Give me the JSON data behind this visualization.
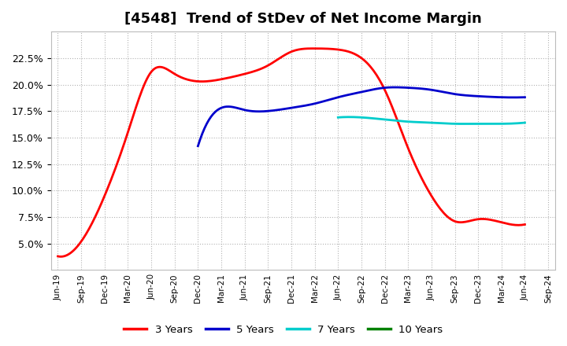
{
  "title": "[4548]  Trend of StDev of Net Income Margin",
  "title_fontsize": 13,
  "background_color": "#ffffff",
  "plot_bg_color": "#ffffff",
  "grid_color": "#aaaaaa",
  "x_labels": [
    "Jun-19",
    "Sep-19",
    "Dec-19",
    "Mar-20",
    "Jun-20",
    "Sep-20",
    "Dec-20",
    "Mar-21",
    "Jun-21",
    "Sep-21",
    "Dec-21",
    "Mar-22",
    "Jun-22",
    "Sep-22",
    "Dec-22",
    "Mar-23",
    "Jun-23",
    "Sep-23",
    "Dec-23",
    "Mar-24",
    "Jun-24",
    "Sep-24"
  ],
  "series": {
    "3 Years": {
      "color": "#ff0000",
      "linewidth": 2.0,
      "values": [
        3.8,
        5.2,
        9.5,
        15.5,
        21.2,
        21.0,
        20.3,
        20.5,
        21.0,
        21.8,
        23.1,
        23.4,
        23.3,
        22.5,
        19.5,
        14.0,
        9.5,
        7.1,
        7.3,
        7.0,
        6.8,
        null
      ]
    },
    "5 Years": {
      "color": "#0000cc",
      "linewidth": 2.0,
      "values": [
        null,
        null,
        null,
        null,
        null,
        null,
        14.2,
        17.8,
        17.6,
        17.5,
        17.8,
        18.2,
        18.8,
        19.3,
        19.7,
        19.7,
        19.5,
        19.1,
        18.9,
        18.8,
        18.8,
        null
      ]
    },
    "7 Years": {
      "color": "#00cccc",
      "linewidth": 2.0,
      "values": [
        null,
        null,
        null,
        null,
        null,
        null,
        null,
        null,
        null,
        null,
        null,
        null,
        16.9,
        16.9,
        16.7,
        16.5,
        16.4,
        16.3,
        16.3,
        16.3,
        16.4,
        null
      ]
    },
    "10 Years": {
      "color": "#008000",
      "linewidth": 2.0,
      "values": [
        null,
        null,
        null,
        null,
        null,
        null,
        null,
        null,
        null,
        null,
        null,
        null,
        null,
        null,
        null,
        null,
        null,
        null,
        null,
        null,
        null,
        null
      ]
    }
  },
  "ylim": [
    2.5,
    25.0
  ],
  "yticks": [
    5.0,
    7.5,
    10.0,
    12.5,
    15.0,
    17.5,
    20.0,
    22.5
  ],
  "legend_labels": [
    "3 Years",
    "5 Years",
    "7 Years",
    "10 Years"
  ],
  "legend_colors": [
    "#ff0000",
    "#0000cc",
    "#00cccc",
    "#008000"
  ]
}
